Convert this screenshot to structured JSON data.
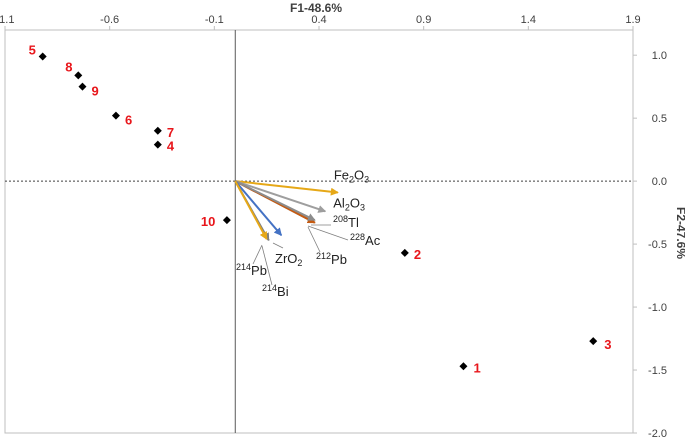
{
  "chart_data": {
    "type": "scatter",
    "title": "",
    "xlabel": "F1-48.6%",
    "ylabel": "F2-47.6%",
    "xlim": [
      -1.1,
      1.9
    ],
    "ylim": [
      -2.0,
      1.2
    ],
    "xticks": [
      "-1.1",
      "-0.6",
      "-0.1",
      "0.4",
      "0.9",
      "1.4",
      "1.9"
    ],
    "yticks": [
      "1.0",
      "0.5",
      "0.0",
      "-0.5",
      "-1.0",
      "-1.5",
      "-2.0"
    ],
    "grid": false,
    "points": [
      {
        "label": "1",
        "x": 1.09,
        "y": -1.47
      },
      {
        "label": "2",
        "x": 0.81,
        "y": -0.57
      },
      {
        "label": "3",
        "x": 1.71,
        "y": -1.27
      },
      {
        "label": "4",
        "x": -0.37,
        "y": 0.29
      },
      {
        "label": "5",
        "x": -0.92,
        "y": 0.99
      },
      {
        "label": "6",
        "x": -0.57,
        "y": 0.52
      },
      {
        "label": "7",
        "x": -0.37,
        "y": 0.4
      },
      {
        "label": "8",
        "x": -0.75,
        "y": 0.84
      },
      {
        "label": "9",
        "x": -0.73,
        "y": 0.75
      },
      {
        "label": "10",
        "x": -0.04,
        "y": -0.31
      }
    ],
    "vectors": [
      {
        "base": "Fe",
        "sub": "2",
        "mid": "O",
        "sub2": "3",
        "x": 0.49,
        "y": -0.09,
        "color": "#e6a817"
      },
      {
        "base": "Al",
        "sub": "2",
        "mid": "O",
        "sub2": "3",
        "x": 0.43,
        "y": -0.24,
        "color": "#9e9e9e"
      },
      {
        "sup": "208",
        "base": "Tl",
        "x": 0.38,
        "y": -0.33,
        "color": "#a5a5a5"
      },
      {
        "sup": "228",
        "base": "Ac",
        "x": 0.38,
        "y": -0.33,
        "color": "#c55a11"
      },
      {
        "sup": "212",
        "base": "Pb",
        "x": 0.38,
        "y": -0.31,
        "color": "#8c8c8c"
      },
      {
        "base": "ZrO",
        "sub": "2",
        "x": 0.22,
        "y": -0.43,
        "color": "#4472c4"
      },
      {
        "sup": "214",
        "base": "Pb",
        "x": 0.16,
        "y": -0.47,
        "color": "#7f7f7f"
      },
      {
        "sup": "214",
        "base": "Bi",
        "x": 0.15,
        "y": -0.46,
        "color": "#e6a817"
      }
    ]
  }
}
